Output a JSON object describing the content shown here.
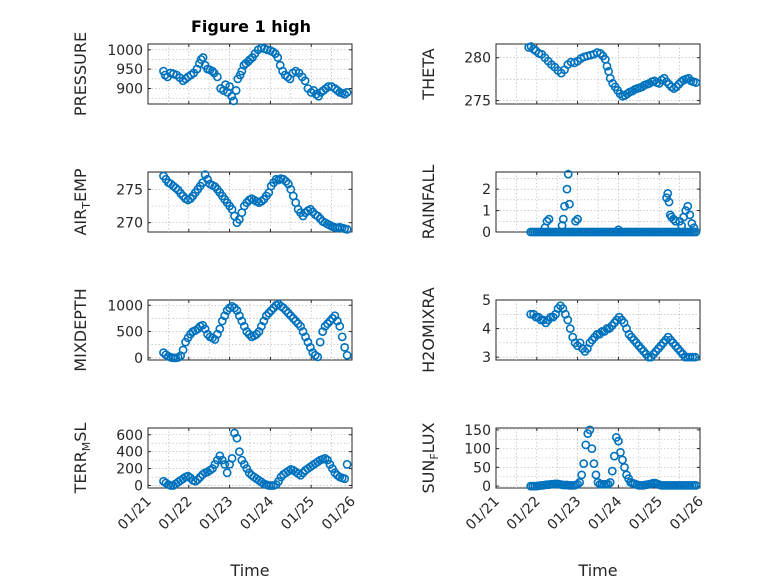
{
  "title": "Figure 1 high",
  "accent_color": "#0072BD",
  "chart_data": [
    {
      "type": "scatter",
      "ylabel": "PRESSURE",
      "title": "Figure 1 high",
      "xlim": [
        0,
        5
      ],
      "ylim": [
        860,
        1015
      ],
      "yticks": [
        900,
        950,
        1000
      ],
      "xticks": [],
      "grid": true,
      "x": [
        0.38,
        0.42,
        0.48,
        0.55,
        0.62,
        0.7,
        0.78,
        0.86,
        0.92,
        0.98,
        1.05,
        1.12,
        1.2,
        1.26,
        1.3,
        1.35,
        1.4,
        1.46,
        1.52,
        1.58,
        1.62,
        1.7,
        1.78,
        1.85,
        1.9,
        1.95,
        2.0,
        2.05,
        2.1,
        2.16,
        2.2,
        2.26,
        2.3,
        2.35,
        2.4,
        2.46,
        2.5,
        2.56,
        2.62,
        2.7,
        2.78,
        2.85,
        2.92,
        3.0,
        3.06,
        3.12,
        3.18,
        3.24,
        3.3,
        3.36,
        3.42,
        3.48,
        3.55,
        3.62,
        3.7,
        3.78,
        3.85,
        3.92,
        4.0,
        4.06,
        4.12,
        4.18,
        4.24,
        4.3,
        4.36,
        4.42,
        4.5,
        4.58,
        4.64,
        4.7,
        4.76,
        4.82,
        4.88
      ],
      "y": [
        945,
        935,
        930,
        940,
        938,
        935,
        928,
        920,
        925,
        930,
        935,
        940,
        950,
        965,
        975,
        980,
        960,
        950,
        948,
        945,
        940,
        930,
        900,
        895,
        910,
        890,
        905,
        880,
        868,
        895,
        925,
        935,
        945,
        960,
        965,
        970,
        975,
        980,
        990,
        1000,
        1005,
        1003,
        1000,
        998,
        995,
        990,
        980,
        960,
        945,
        935,
        930,
        925,
        940,
        945,
        940,
        930,
        920,
        900,
        890,
        895,
        885,
        880,
        890,
        895,
        900,
        905,
        905,
        900,
        895,
        890,
        888,
        885,
        890
      ]
    },
    {
      "type": "scatter",
      "ylabel": "THETA",
      "xlim": [
        0,
        5
      ],
      "ylim": [
        274.6,
        281.6
      ],
      "yticks": [
        275,
        280
      ],
      "xticks": [],
      "grid": true,
      "x": [
        0.8,
        0.86,
        0.92,
        0.98,
        1.05,
        1.12,
        1.2,
        1.28,
        1.36,
        1.44,
        1.52,
        1.6,
        1.68,
        1.76,
        1.84,
        1.92,
        2.0,
        2.08,
        2.16,
        2.24,
        2.32,
        2.4,
        2.48,
        2.56,
        2.62,
        2.68,
        2.72,
        2.76,
        2.8,
        2.86,
        2.92,
        2.98,
        3.04,
        3.1,
        3.16,
        3.22,
        3.28,
        3.34,
        3.4,
        3.46,
        3.52,
        3.58,
        3.64,
        3.7,
        3.76,
        3.82,
        3.88,
        3.94,
        4.0,
        4.06,
        4.12,
        4.18,
        4.24,
        4.3,
        4.36,
        4.42,
        4.48,
        4.54,
        4.6,
        4.66,
        4.72,
        4.78,
        4.84,
        4.9
      ],
      "y": [
        281.2,
        281.3,
        281.0,
        280.8,
        280.5,
        280.4,
        280.0,
        279.6,
        279.2,
        278.9,
        278.5,
        278.2,
        278.6,
        279.2,
        279.5,
        279.4,
        279.6,
        279.9,
        280.1,
        280.2,
        280.3,
        280.4,
        280.6,
        280.5,
        280.2,
        279.8,
        279.0,
        278.4,
        277.6,
        277.0,
        276.6,
        276.2,
        275.8,
        275.5,
        275.6,
        275.8,
        276.0,
        276.1,
        276.3,
        276.4,
        276.5,
        276.6,
        276.8,
        276.9,
        277.0,
        277.2,
        277.3,
        277.1,
        277.0,
        277.4,
        277.6,
        277.2,
        276.9,
        276.6,
        276.4,
        276.6,
        276.9,
        277.2,
        277.4,
        277.5,
        277.6,
        277.3,
        277.2,
        277.1
      ]
    },
    {
      "type": "scatter",
      "ylabel": "AIR_TEMP",
      "xlim": [
        0,
        5
      ],
      "ylim": [
        268.6,
        277.6
      ],
      "yticks": [
        270,
        275
      ],
      "xticks": [],
      "grid": true,
      "x": [
        0.38,
        0.44,
        0.5,
        0.56,
        0.62,
        0.68,
        0.74,
        0.8,
        0.86,
        0.92,
        0.98,
        1.04,
        1.1,
        1.16,
        1.22,
        1.28,
        1.34,
        1.4,
        1.46,
        1.52,
        1.58,
        1.64,
        1.7,
        1.76,
        1.82,
        1.88,
        1.94,
        2.0,
        2.06,
        2.12,
        2.18,
        2.24,
        2.3,
        2.36,
        2.42,
        2.48,
        2.54,
        2.6,
        2.66,
        2.72,
        2.78,
        2.84,
        2.9,
        2.96,
        3.02,
        3.08,
        3.14,
        3.2,
        3.26,
        3.32,
        3.38,
        3.44,
        3.5,
        3.56,
        3.62,
        3.68,
        3.74,
        3.8,
        3.86,
        3.92,
        3.98,
        4.04,
        4.1,
        4.16,
        4.22,
        4.28,
        4.34,
        4.4,
        4.46,
        4.52,
        4.58,
        4.64,
        4.7,
        4.76,
        4.82,
        4.88
      ],
      "y": [
        277,
        276.5,
        276,
        275.8,
        275.5,
        275.2,
        274.9,
        274.4,
        274.0,
        273.6,
        273.4,
        273.6,
        274.0,
        274.5,
        275.0,
        275.5,
        276.0,
        277.2,
        276.5,
        275.8,
        275.6,
        275.4,
        275.0,
        274.5,
        274.0,
        273.5,
        273.0,
        272.5,
        272.0,
        271.0,
        270.0,
        270.5,
        271.5,
        272.5,
        273.0,
        273.4,
        273.6,
        273.4,
        273.2,
        273.0,
        273.2,
        273.5,
        274.0,
        274.5,
        275.5,
        276.0,
        276.5,
        276.4,
        276.6,
        276.5,
        276.2,
        275.8,
        275.0,
        274.0,
        273.0,
        272.0,
        271.5,
        271.0,
        271.5,
        271.8,
        272.0,
        271.6,
        271.2,
        271.0,
        270.6,
        270.2,
        270.0,
        269.8,
        269.6,
        269.4,
        269.3,
        269.2,
        269.3,
        269.2,
        269.1,
        269.0
      ]
    },
    {
      "type": "scatter",
      "ylabel": "RAINFALL",
      "xlim": [
        0,
        5
      ],
      "ylim": [
        0,
        2.8
      ],
      "yticks": [
        0,
        1,
        2
      ],
      "xticks": [],
      "grid": true,
      "x": [
        0.85,
        0.9,
        0.95,
        1.0,
        1.05,
        1.1,
        1.15,
        1.2,
        1.25,
        1.3,
        1.35,
        1.4,
        1.45,
        1.5,
        1.55,
        1.6,
        1.65,
        1.7,
        1.75,
        1.8,
        1.85,
        1.9,
        1.95,
        2.0,
        2.05,
        2.1,
        2.15,
        2.2,
        2.25,
        2.3,
        2.35,
        2.4,
        2.45,
        2.5,
        2.55,
        2.6,
        2.65,
        2.7,
        2.75,
        2.8,
        2.85,
        2.9,
        2.95,
        3.0,
        3.05,
        3.1,
        3.15,
        3.2,
        3.25,
        3.3,
        3.35,
        3.4,
        3.45,
        3.5,
        3.55,
        3.6,
        3.65,
        3.7,
        3.75,
        3.8,
        3.85,
        3.9,
        3.95,
        4.0,
        4.05,
        4.1,
        4.15,
        4.2,
        4.25,
        4.3,
        4.35,
        4.4,
        4.45,
        4.5,
        4.55,
        4.6,
        4.65,
        4.7,
        4.75,
        4.8,
        4.85,
        4.9,
        1.68,
        1.74,
        1.77,
        1.8,
        1.65,
        1.62,
        1.2,
        1.25,
        1.3,
        1.95,
        2.0,
        4.18,
        4.21,
        4.24,
        4.27,
        4.3,
        4.35,
        4.4,
        4.5,
        4.55,
        4.6,
        4.65,
        4.7,
        4.75,
        4.8,
        4.85,
        3.0
      ],
      "y": [
        0,
        0,
        0,
        0,
        0,
        0,
        0,
        0,
        0,
        0,
        0,
        0,
        0,
        0,
        0,
        0,
        0,
        0,
        0,
        0,
        0,
        0,
        0,
        0,
        0,
        0,
        0,
        0,
        0,
        0,
        0,
        0,
        0,
        0,
        0,
        0,
        0,
        0,
        0,
        0,
        0,
        0,
        0,
        0,
        0,
        0,
        0,
        0,
        0,
        0,
        0,
        0,
        0,
        0,
        0,
        0,
        0,
        0,
        0,
        0,
        0,
        0,
        0,
        0,
        0,
        0,
        0,
        0,
        0,
        0,
        0,
        0,
        0,
        0,
        0,
        0,
        0,
        0,
        0,
        0,
        0,
        0,
        1.2,
        2.0,
        2.7,
        1.3,
        0.6,
        0.3,
        0.2,
        0.5,
        0.6,
        0.5,
        0.6,
        1.6,
        1.8,
        1.4,
        0.8,
        0.7,
        0.6,
        0.5,
        0.5,
        0.3,
        0.7,
        1.0,
        1.2,
        0.8,
        0.4,
        0.2,
        0.1
      ],
      "note": ""
    },
    {
      "type": "scatter",
      "ylabel": "MIXDEPTH",
      "xlim": [
        0,
        5
      ],
      "ylim": [
        -40,
        1100
      ],
      "yticks": [
        0,
        500,
        1000
      ],
      "xticks": [],
      "grid": true,
      "x": [
        0.38,
        0.44,
        0.5,
        0.56,
        0.62,
        0.68,
        0.74,
        0.8,
        0.86,
        0.92,
        0.98,
        1.04,
        1.1,
        1.16,
        1.22,
        1.28,
        1.34,
        1.4,
        1.46,
        1.52,
        1.58,
        1.64,
        1.7,
        1.76,
        1.82,
        1.88,
        1.94,
        2.0,
        2.06,
        2.12,
        2.18,
        2.24,
        2.3,
        2.36,
        2.42,
        2.48,
        2.54,
        2.6,
        2.66,
        2.72,
        2.78,
        2.84,
        2.9,
        2.96,
        3.02,
        3.08,
        3.14,
        3.2,
        3.26,
        3.32,
        3.38,
        3.44,
        3.5,
        3.56,
        3.62,
        3.68,
        3.74,
        3.8,
        3.86,
        3.92,
        3.98,
        4.04,
        4.1,
        4.16,
        4.22,
        4.28,
        4.34,
        4.4,
        4.46,
        4.52,
        4.58,
        4.64,
        4.7,
        4.76,
        4.82,
        4.88
      ],
      "y": [
        100,
        60,
        30,
        10,
        0,
        0,
        10,
        40,
        150,
        300,
        380,
        450,
        500,
        520,
        550,
        600,
        620,
        550,
        450,
        400,
        380,
        350,
        450,
        550,
        700,
        800,
        900,
        950,
        980,
        950,
        900,
        800,
        700,
        600,
        500,
        450,
        400,
        420,
        450,
        500,
        600,
        700,
        800,
        850,
        900,
        950,
        1000,
        1020,
        980,
        950,
        900,
        850,
        800,
        750,
        700,
        650,
        600,
        500,
        400,
        300,
        200,
        100,
        50,
        20,
        300,
        500,
        600,
        650,
        700,
        750,
        800,
        700,
        600,
        400,
        200,
        50
      ]
    },
    {
      "type": "scatter",
      "ylabel": "H2OMIXRA",
      "xlim": [
        0,
        5
      ],
      "ylim": [
        2.9,
        5.0
      ],
      "yticks": [
        3,
        4,
        5
      ],
      "xticks": [],
      "grid": true,
      "x": [
        0.85,
        0.92,
        0.98,
        1.04,
        1.1,
        1.16,
        1.22,
        1.28,
        1.34,
        1.4,
        1.46,
        1.52,
        1.58,
        1.64,
        1.7,
        1.76,
        1.82,
        1.88,
        1.94,
        2.0,
        2.06,
        2.12,
        2.18,
        2.24,
        2.3,
        2.36,
        2.42,
        2.48,
        2.54,
        2.6,
        2.66,
        2.72,
        2.78,
        2.84,
        2.9,
        2.96,
        3.02,
        3.08,
        3.14,
        3.2,
        3.26,
        3.32,
        3.38,
        3.44,
        3.5,
        3.56,
        3.62,
        3.68,
        3.74,
        3.8,
        3.86,
        3.92,
        3.98,
        4.04,
        4.1,
        4.16,
        4.22,
        4.28,
        4.34,
        4.4,
        4.46,
        4.52,
        4.58,
        4.64,
        4.7,
        4.76,
        4.82,
        4.88
      ],
      "y": [
        4.5,
        4.5,
        4.4,
        4.4,
        4.3,
        4.3,
        4.2,
        4.3,
        4.4,
        4.4,
        4.5,
        4.7,
        4.8,
        4.7,
        4.5,
        4.3,
        4.0,
        3.7,
        3.5,
        3.4,
        3.5,
        3.3,
        3.2,
        3.3,
        3.5,
        3.6,
        3.7,
        3.8,
        3.8,
        3.9,
        3.9,
        4.0,
        4.0,
        4.1,
        4.2,
        4.3,
        4.4,
        4.3,
        4.2,
        4.0,
        3.8,
        3.7,
        3.6,
        3.5,
        3.4,
        3.3,
        3.2,
        3.1,
        3.0,
        3.0,
        3.1,
        3.2,
        3.3,
        3.4,
        3.5,
        3.6,
        3.7,
        3.6,
        3.5,
        3.4,
        3.3,
        3.2,
        3.1,
        3.0,
        3.0,
        3.0,
        3.0,
        3.0
      ]
    },
    {
      "type": "scatter",
      "ylabel": "TERR_MSL",
      "xlim": [
        0,
        5
      ],
      "ylim": [
        -30,
        680
      ],
      "yticks": [
        0,
        200,
        400,
        600
      ],
      "xticks": [
        "01/21",
        "01/22",
        "01/23",
        "01/24",
        "01/25",
        "01/26"
      ],
      "xlabel": "Time",
      "grid": true,
      "x": [
        0.38,
        0.44,
        0.5,
        0.56,
        0.62,
        0.68,
        0.74,
        0.8,
        0.86,
        0.92,
        0.98,
        1.04,
        1.1,
        1.16,
        1.22,
        1.28,
        1.34,
        1.4,
        1.46,
        1.52,
        1.58,
        1.64,
        1.7,
        1.76,
        1.82,
        1.88,
        1.94,
        2.0,
        2.06,
        2.12,
        2.18,
        2.24,
        2.3,
        2.36,
        2.42,
        2.48,
        2.54,
        2.6,
        2.66,
        2.72,
        2.78,
        2.84,
        2.9,
        2.96,
        3.02,
        3.08,
        3.14,
        3.2,
        3.26,
        3.32,
        3.38,
        3.44,
        3.5,
        3.56,
        3.62,
        3.68,
        3.74,
        3.8,
        3.86,
        3.92,
        3.98,
        4.04,
        4.1,
        4.16,
        4.22,
        4.28,
        4.34,
        4.4,
        4.46,
        4.52,
        4.58,
        4.64,
        4.7,
        4.76,
        4.82,
        4.88
      ],
      "y": [
        50,
        30,
        10,
        0,
        0,
        20,
        40,
        60,
        80,
        100,
        110,
        90,
        60,
        50,
        70,
        100,
        130,
        150,
        160,
        180,
        200,
        250,
        300,
        350,
        300,
        250,
        150,
        250,
        320,
        620,
        560,
        400,
        300,
        250,
        200,
        150,
        120,
        100,
        80,
        60,
        40,
        20,
        10,
        0,
        0,
        0,
        10,
        50,
        100,
        130,
        150,
        170,
        190,
        180,
        160,
        140,
        120,
        150,
        180,
        200,
        220,
        240,
        260,
        280,
        300,
        310,
        320,
        300,
        250,
        200,
        150,
        120,
        100,
        90,
        80,
        250
      ]
    },
    {
      "type": "scatter",
      "ylabel": "SUN_FLUX",
      "xlim": [
        0,
        5
      ],
      "ylim": [
        -5,
        155
      ],
      "yticks": [
        0,
        50,
        100,
        150
      ],
      "xticks": [
        "01/21",
        "01/22",
        "01/23",
        "01/24",
        "01/25",
        "01/26"
      ],
      "xlabel": "Time",
      "grid": true,
      "x": [
        0.85,
        0.9,
        0.95,
        1.0,
        1.05,
        1.1,
        1.15,
        1.2,
        1.25,
        1.3,
        1.35,
        1.4,
        1.45,
        1.5,
        1.55,
        1.6,
        1.65,
        1.7,
        1.75,
        1.8,
        1.85,
        1.9,
        1.95,
        2.0,
        2.05,
        2.1,
        2.15,
        2.2,
        2.25,
        2.3,
        2.35,
        2.4,
        2.45,
        2.5,
        2.55,
        2.6,
        2.65,
        2.7,
        2.75,
        2.8,
        2.85,
        2.9,
        2.95,
        3.0,
        3.05,
        3.1,
        3.15,
        3.2,
        3.25,
        3.3,
        3.35,
        3.4,
        3.45,
        3.5,
        3.55,
        3.6,
        3.65,
        3.7,
        3.75,
        3.8,
        3.85,
        3.9,
        3.95,
        4.0,
        4.05,
        4.1,
        4.15,
        4.2,
        4.25,
        4.3,
        4.35,
        4.4,
        4.45,
        4.5,
        4.55,
        4.6,
        4.65,
        4.7,
        4.75,
        4.8,
        4.85,
        4.9
      ],
      "y": [
        0,
        0,
        0,
        0,
        1,
        2,
        2,
        3,
        4,
        4,
        5,
        5,
        6,
        6,
        5,
        4,
        3,
        3,
        3,
        2,
        2,
        2,
        3,
        5,
        10,
        30,
        60,
        110,
        140,
        150,
        100,
        60,
        30,
        10,
        5,
        5,
        5,
        5,
        5,
        10,
        40,
        80,
        130,
        120,
        90,
        70,
        50,
        30,
        20,
        10,
        8,
        6,
        4,
        2,
        2,
        2,
        3,
        4,
        5,
        6,
        8,
        8,
        6,
        4,
        2,
        2,
        2,
        2,
        2,
        2,
        2,
        2,
        2,
        2,
        2,
        2,
        2,
        2,
        2,
        2,
        2,
        2
      ]
    }
  ]
}
